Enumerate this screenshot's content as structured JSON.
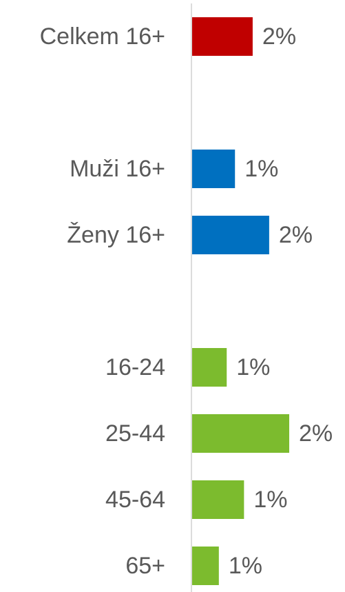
{
  "chart_data": {
    "type": "bar",
    "orientation": "horizontal",
    "categories": [
      "Celkem 16+",
      null,
      "Muži 16+",
      "Ženy 16+",
      null,
      "16-24",
      "25-44",
      "45-64",
      "65+"
    ],
    "values": [
      1.54,
      null,
      1.09,
      1.96,
      null,
      0.88,
      2.47,
      1.32,
      0.68
    ],
    "value_labels": [
      "2%",
      null,
      "1%",
      "2%",
      null,
      "1%",
      "2%",
      "1%",
      "1%"
    ],
    "colors": [
      "#c00000",
      null,
      "#0070c0",
      "#0070c0",
      null,
      "#7cbb2e",
      "#7cbb2e",
      "#7cbb2e",
      "#7cbb2e"
    ]
  }
}
